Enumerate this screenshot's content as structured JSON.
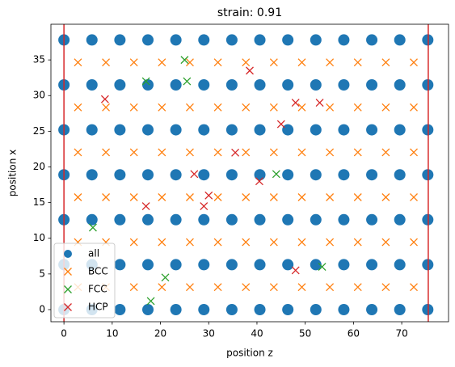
{
  "chart_data": {
    "type": "scatter",
    "title": "strain: 0.91",
    "xlabel": "position z",
    "ylabel": "position x",
    "xlim": [
      -2.7,
      79.7
    ],
    "ylim": [
      -1.7,
      40
    ],
    "xticks": [
      0,
      10,
      20,
      30,
      40,
      50,
      60,
      70
    ],
    "yticks": [
      0,
      5,
      10,
      15,
      20,
      25,
      30,
      35
    ],
    "vlines": [
      0,
      75.5
    ],
    "vline_color": "#d62728",
    "legend": "lower left",
    "series": [
      {
        "name": "all",
        "color": "#1f77b4",
        "marker": "o",
        "x": [
          0,
          5.8,
          11.6,
          17.4,
          23.2,
          29,
          34.8,
          40.6,
          46.4,
          52.2,
          58,
          63.8,
          69.6,
          75.4,
          0,
          5.8,
          11.6,
          17.4,
          23.2,
          29,
          34.8,
          40.6,
          46.4,
          52.2,
          58,
          63.8,
          69.6,
          75.4,
          0,
          5.8,
          11.6,
          17.4,
          23.2,
          29,
          34.8,
          40.6,
          46.4,
          52.2,
          58,
          63.8,
          69.6,
          75.4,
          0,
          5.8,
          11.6,
          17.4,
          23.2,
          29,
          34.8,
          40.6,
          46.4,
          52.2,
          58,
          63.8,
          69.6,
          75.4,
          0,
          5.8,
          11.6,
          17.4,
          23.2,
          29,
          34.8,
          40.6,
          46.4,
          52.2,
          58,
          63.8,
          69.6,
          75.4,
          0,
          5.8,
          11.6,
          17.4,
          23.2,
          29,
          34.8,
          40.6,
          46.4,
          52.2,
          58,
          63.8,
          69.6,
          75.4,
          0,
          5.8,
          11.6,
          17.4,
          23.2,
          29,
          34.8,
          40.6,
          46.4,
          52.2,
          58,
          63.8,
          69.6,
          75.4
        ],
        "y": [
          0,
          0,
          0,
          0,
          0,
          0,
          0,
          0,
          0,
          0,
          0,
          0,
          0,
          0,
          6.3,
          6.3,
          6.3,
          6.3,
          6.3,
          6.3,
          6.3,
          6.3,
          6.3,
          6.3,
          6.3,
          6.3,
          6.3,
          6.3,
          12.6,
          12.6,
          12.6,
          12.6,
          12.6,
          12.6,
          12.6,
          12.6,
          12.6,
          12.6,
          12.6,
          12.6,
          12.6,
          12.6,
          18.9,
          18.9,
          18.9,
          18.9,
          18.9,
          18.9,
          18.9,
          18.9,
          18.9,
          18.9,
          18.9,
          18.9,
          18.9,
          18.9,
          25.2,
          25.2,
          25.2,
          25.2,
          25.2,
          25.2,
          25.2,
          25.2,
          25.2,
          25.2,
          25.2,
          25.2,
          25.2,
          25.2,
          31.5,
          31.5,
          31.5,
          31.5,
          31.5,
          31.5,
          31.5,
          31.5,
          31.5,
          31.5,
          31.5,
          31.5,
          31.5,
          31.5,
          37.8,
          37.8,
          37.8,
          37.8,
          37.8,
          37.8,
          37.8,
          37.8,
          37.8,
          37.8,
          37.8,
          37.8,
          37.8,
          37.8
        ]
      },
      {
        "name": "BCC",
        "color": "#ff7f0e",
        "marker": "x",
        "x": [
          2.9,
          8.7,
          14.5,
          20.3,
          26.1,
          31.9,
          37.7,
          43.5,
          49.3,
          55.1,
          60.9,
          66.7,
          72.5,
          2.9,
          8.7,
          14.5,
          20.3,
          26.1,
          31.9,
          37.7,
          43.5,
          49.3,
          55.1,
          60.9,
          66.7,
          72.5,
          2.9,
          8.7,
          14.5,
          20.3,
          26.1,
          31.9,
          37.7,
          43.5,
          49.3,
          55.1,
          60.9,
          66.7,
          72.5,
          2.9,
          8.7,
          14.5,
          20.3,
          26.1,
          31.9,
          37.7,
          43.5,
          49.3,
          55.1,
          60.9,
          66.7,
          72.5,
          2.9,
          8.7,
          14.5,
          20.3,
          26.1,
          31.9,
          37.7,
          43.5,
          49.3,
          55.1,
          60.9,
          66.7,
          72.5,
          2.9,
          8.7,
          14.5,
          20.3,
          26.1,
          31.9,
          37.7,
          43.5,
          49.3,
          55.1,
          60.9,
          66.7,
          72.5
        ],
        "y": [
          3.15,
          3.15,
          3.15,
          3.15,
          3.15,
          3.15,
          3.15,
          3.15,
          3.15,
          3.15,
          3.15,
          3.15,
          3.15,
          9.45,
          9.45,
          9.45,
          9.45,
          9.45,
          9.45,
          9.45,
          9.45,
          9.45,
          9.45,
          9.45,
          9.45,
          9.45,
          15.75,
          15.75,
          15.75,
          15.75,
          15.75,
          15.75,
          15.75,
          15.75,
          15.75,
          15.75,
          15.75,
          15.75,
          15.75,
          22.05,
          22.05,
          22.05,
          22.05,
          22.05,
          22.05,
          22.05,
          22.05,
          22.05,
          22.05,
          22.05,
          22.05,
          22.05,
          28.35,
          28.35,
          28.35,
          28.35,
          28.35,
          28.35,
          28.35,
          28.35,
          28.35,
          28.35,
          28.35,
          28.35,
          28.35,
          34.65,
          34.65,
          34.65,
          34.65,
          34.65,
          34.65,
          34.65,
          34.65,
          34.65,
          34.65,
          34.65,
          34.65,
          34.65
        ]
      },
      {
        "name": "FCC",
        "color": "#2ca02c",
        "marker": "x",
        "x": [
          25,
          25.5,
          17,
          44,
          53.5,
          21,
          18,
          6
        ],
        "y": [
          35,
          32,
          32,
          19,
          6,
          4.5,
          1.2,
          11.5
        ]
      },
      {
        "name": "HCP",
        "color": "#d62728",
        "marker": "x",
        "x": [
          38.5,
          48,
          53,
          8.5,
          45,
          35.5,
          27,
          30,
          40.5,
          17,
          29,
          48
        ],
        "y": [
          33.5,
          29,
          29,
          29.5,
          26,
          22,
          19,
          16,
          18,
          14.5,
          14.5,
          5.5
        ]
      }
    ]
  }
}
